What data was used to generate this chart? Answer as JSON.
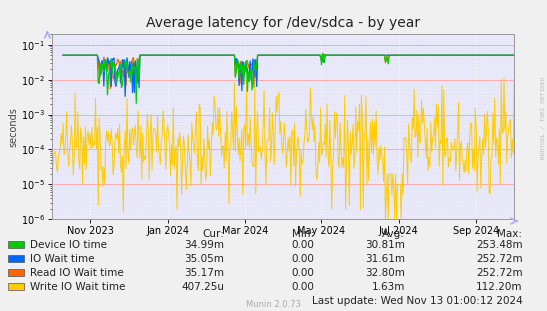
{
  "title": "Average latency for /dev/sdca - by year",
  "ylabel": "seconds",
  "watermark": "RRDTOOL / TOBI OETIKER",
  "munin_version": "Munin 2.0.73",
  "xaxis_labels": [
    "Nov 2023",
    "Jan 2024",
    "Mar 2024",
    "May 2024",
    "Jul 2024",
    "Sep 2024"
  ],
  "x_tick_fracs": [
    0.083,
    0.25,
    0.417,
    0.583,
    0.75,
    0.917
  ],
  "legend": [
    {
      "label": "Device IO time",
      "color": "#00cc00",
      "cur": "34.99m",
      "min": "0.00",
      "avg": "30.81m",
      "max": "253.48m"
    },
    {
      "label": "IO Wait time",
      "color": "#0066ff",
      "cur": "35.05m",
      "min": "0.00",
      "avg": "31.61m",
      "max": "252.72m"
    },
    {
      "label": "Read IO Wait time",
      "color": "#ff6600",
      "cur": "35.17m",
      "min": "0.00",
      "avg": "32.80m",
      "max": "252.72m"
    },
    {
      "label": "Write IO Wait time",
      "color": "#ffcc00",
      "cur": "407.25u",
      "min": "0.00",
      "avg": "1.63m",
      "max": "112.20m"
    }
  ],
  "last_update": "Last update: Wed Nov 13 01:00:12 2024",
  "plot_bg": "#e8e8f8",
  "outer_bg": "#f0f0f0",
  "grid_color_major": "#ffffff",
  "grid_color_minor": "#ddddee",
  "pink_line_color": "#ffaaaa",
  "arrow_color": "#aaaaff",
  "border_color": "#999999",
  "title_fontsize": 10,
  "axis_label_fontsize": 7,
  "tick_fontsize": 7,
  "legend_fontsize": 7.5,
  "watermark_fontsize": 4.5
}
